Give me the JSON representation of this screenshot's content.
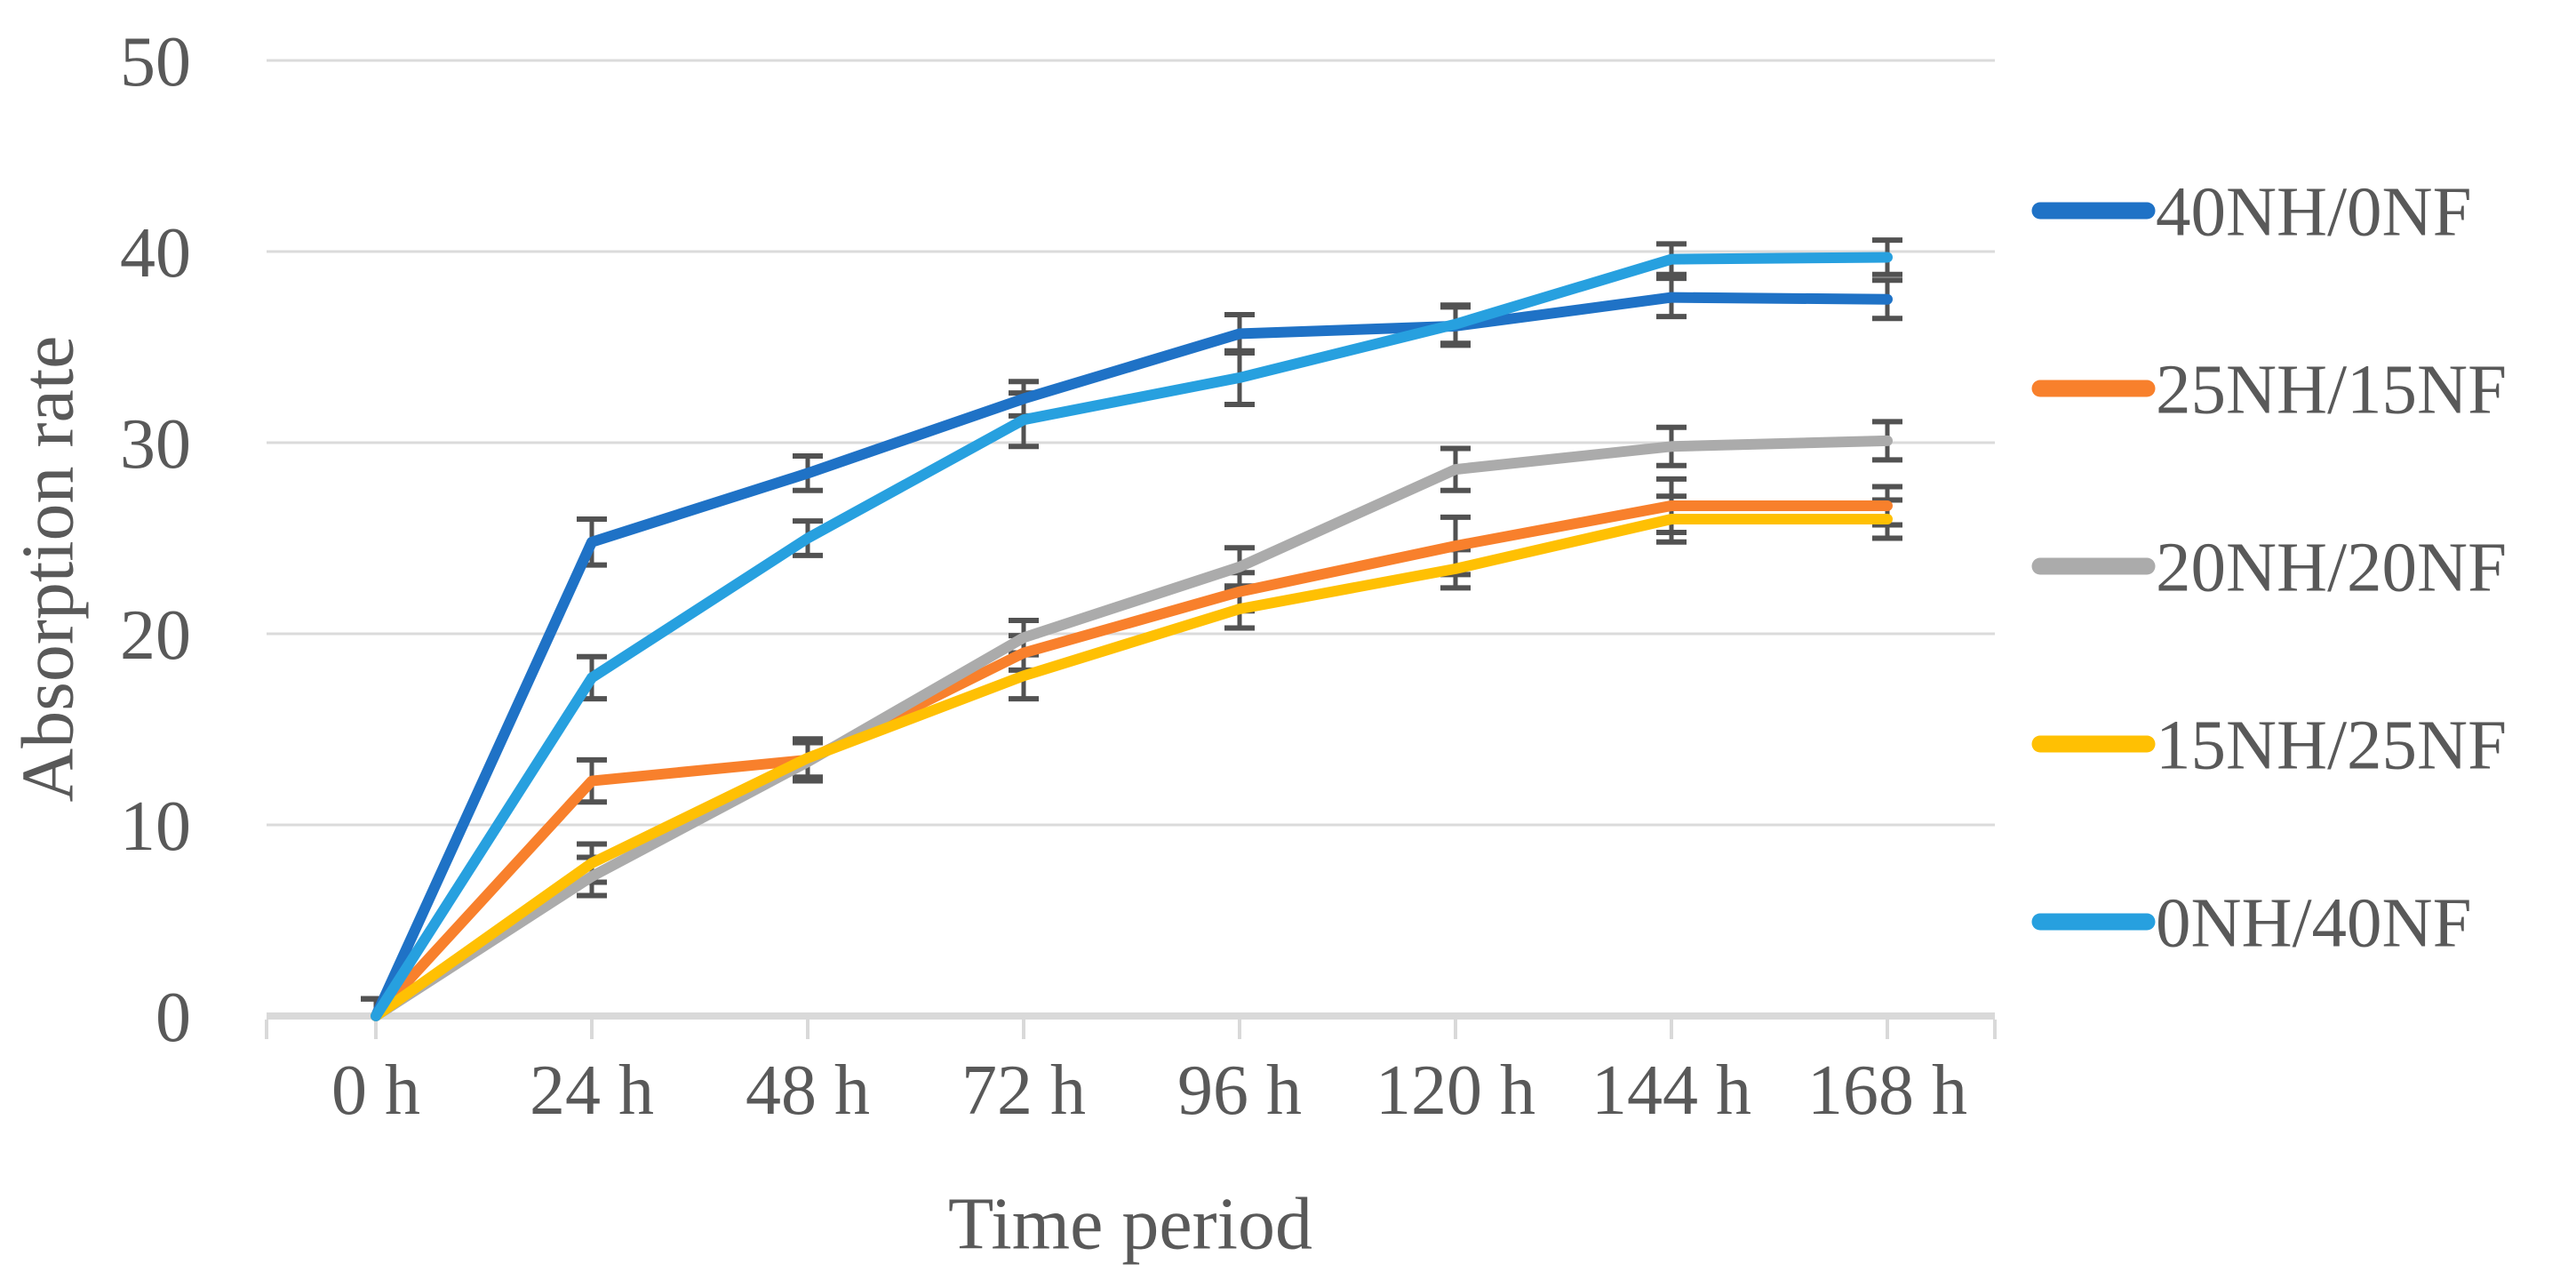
{
  "chart_data": {
    "type": "line",
    "title": "",
    "xlabel": "Time period",
    "ylabel": "Absorption rate",
    "categories": [
      "0 h",
      "24 h",
      "48 h",
      "72 h",
      "96 h",
      "120 h",
      "144 h",
      "168 h"
    ],
    "yticks": [
      0,
      10,
      20,
      30,
      40,
      50
    ],
    "ylim": [
      0,
      50
    ],
    "grid": true,
    "legend_position": "right",
    "error_bars": true,
    "series": [
      {
        "name": "40NH/0NF",
        "color": "#1F72C6",
        "values": [
          0,
          24.8,
          28.4,
          32.3,
          35.7,
          36.1,
          37.6,
          37.5
        ],
        "errors": [
          0.9,
          1.2,
          0.9,
          0.9,
          1.0,
          1.0,
          1.0,
          1.0
        ]
      },
      {
        "name": "25NH/15NF",
        "color": "#F8802C",
        "values": [
          0,
          12.3,
          13.4,
          19.0,
          22.2,
          24.6,
          26.7,
          26.7
        ],
        "errors": [
          0.9,
          1.1,
          1.0,
          0.9,
          1.0,
          1.5,
          1.4,
          1.0
        ]
      },
      {
        "name": "20NH/20NF",
        "color": "#ABABAB",
        "values": [
          0,
          7.3,
          13.3,
          19.8,
          23.5,
          28.6,
          29.8,
          30.1
        ],
        "errors": [
          0.9,
          1.0,
          1.0,
          0.9,
          1.0,
          1.1,
          1.0,
          1.0
        ]
      },
      {
        "name": "15NH/25NF",
        "color": "#FFC003",
        "values": [
          0,
          8.0,
          13.5,
          17.8,
          21.3,
          23.4,
          26.0,
          26.0
        ],
        "errors": [
          0.9,
          1.0,
          1.0,
          1.2,
          1.0,
          1.0,
          1.2,
          1.0
        ]
      },
      {
        "name": "0NH/40NF",
        "color": "#27A0DF",
        "values": [
          0,
          17.7,
          25.0,
          31.2,
          33.4,
          36.2,
          39.6,
          39.7
        ],
        "errors": [
          0.9,
          1.1,
          0.9,
          1.4,
          1.4,
          1.0,
          0.8,
          0.9
        ]
      }
    ],
    "colors": {
      "gridline": "#DBDBDB",
      "axis_line": "#D9D9D9",
      "tick_mark": "#D9D9D9",
      "text": "#595959",
      "error_bar": "#525252",
      "background": "#FFFFFF"
    }
  }
}
